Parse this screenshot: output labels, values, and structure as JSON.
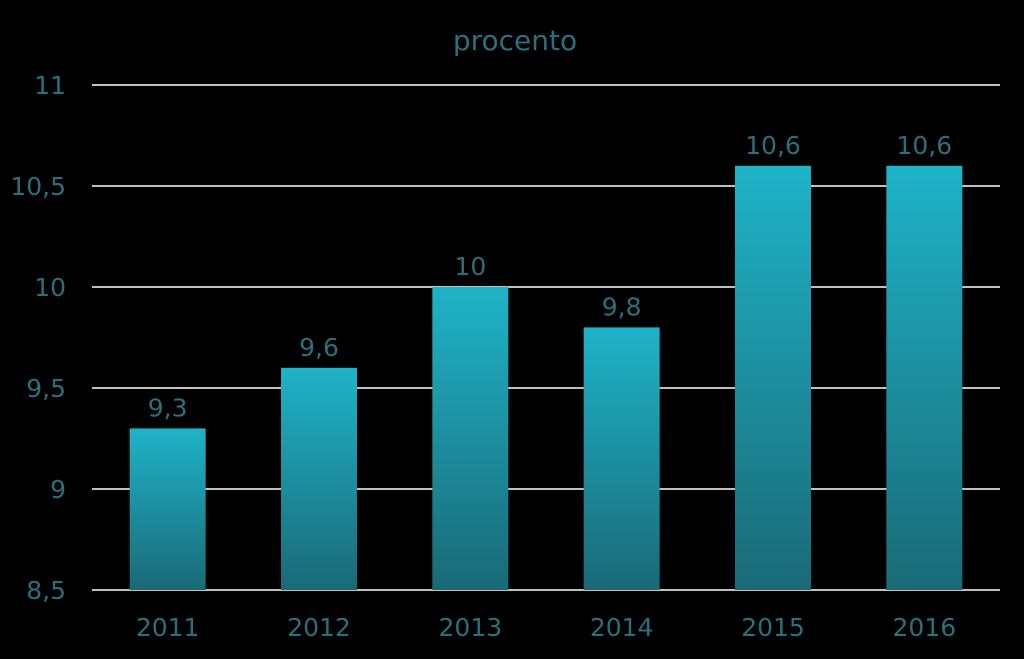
{
  "colors": {
    "background": "#000000",
    "text": "#2a6f7d",
    "gridline": "#ffffff",
    "bar_top": "#1fb3c8",
    "bar_bottom": "#1a6a76"
  },
  "chart_data": {
    "type": "bar",
    "title": "procento",
    "xlabel": "",
    "ylabel": "",
    "categories": [
      "2011",
      "2012",
      "2013",
      "2014",
      "2015",
      "2016"
    ],
    "values": [
      9.3,
      9.6,
      10,
      9.8,
      10.6,
      10.6
    ],
    "value_labels": [
      "9,3",
      "9,6",
      "10",
      "9,8",
      "10,6",
      "10,6"
    ],
    "ylim": [
      8.5,
      11
    ],
    "yticks": [
      8.5,
      9,
      9.5,
      10,
      10.5,
      11
    ],
    "ytick_labels": [
      "8,5",
      "9",
      "9,5",
      "10",
      "10,5",
      "11"
    ],
    "grid": true,
    "legend": "none"
  }
}
